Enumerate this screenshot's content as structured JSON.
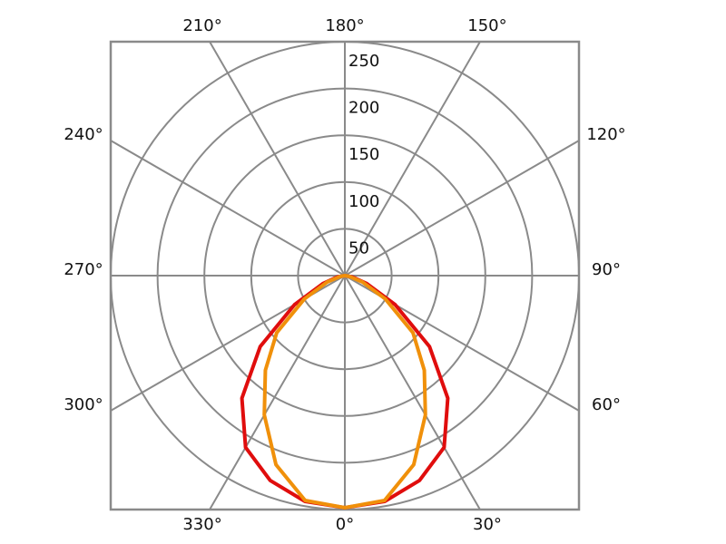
{
  "chart_data": {
    "type": "polar",
    "theta": [
      0,
      10,
      20,
      30,
      40,
      50,
      60,
      70,
      80,
      90,
      100,
      110,
      120,
      130,
      140,
      150,
      160,
      170,
      180,
      190,
      200,
      210,
      220,
      230,
      240,
      250,
      260,
      270,
      280,
      290,
      300,
      310,
      320,
      330,
      340,
      350
    ],
    "series": [
      {
        "color": "#e00d0d",
        "values": [
          248,
          245,
          233,
          212,
          171,
          118,
          62,
          25,
          8,
          0,
          0,
          0,
          0,
          0,
          0,
          0,
          0,
          0,
          0,
          0,
          0,
          0,
          0,
          0,
          0,
          0,
          0,
          0,
          8,
          25,
          62,
          118,
          171,
          212,
          233,
          245
        ]
      },
      {
        "color": "#f0900a",
        "values": [
          248,
          244,
          215,
          172,
          132,
          95,
          50,
          20,
          5,
          0,
          0,
          0,
          0,
          0,
          0,
          0,
          0,
          0,
          0,
          0,
          0,
          0,
          0,
          0,
          0,
          0,
          0,
          0,
          5,
          20,
          50,
          95,
          132,
          172,
          215,
          244
        ]
      }
    ],
    "rlim": [
      0,
      250
    ],
    "rticks": [
      50,
      100,
      150,
      200,
      250
    ],
    "thetaticks": [
      {
        "value": 0,
        "label": "0°"
      },
      {
        "value": 30,
        "label": "30°"
      },
      {
        "value": 60,
        "label": "60°"
      },
      {
        "value": 90,
        "label": "90°"
      },
      {
        "value": 120,
        "label": "120°"
      },
      {
        "value": 150,
        "label": "150°"
      },
      {
        "value": 180,
        "label": "180°"
      },
      {
        "value": 210,
        "label": "210°"
      },
      {
        "value": 240,
        "label": "240°"
      },
      {
        "value": 270,
        "label": "270°"
      },
      {
        "value": 300,
        "label": "300°"
      },
      {
        "value": 330,
        "label": "330°"
      }
    ],
    "grid": true
  }
}
